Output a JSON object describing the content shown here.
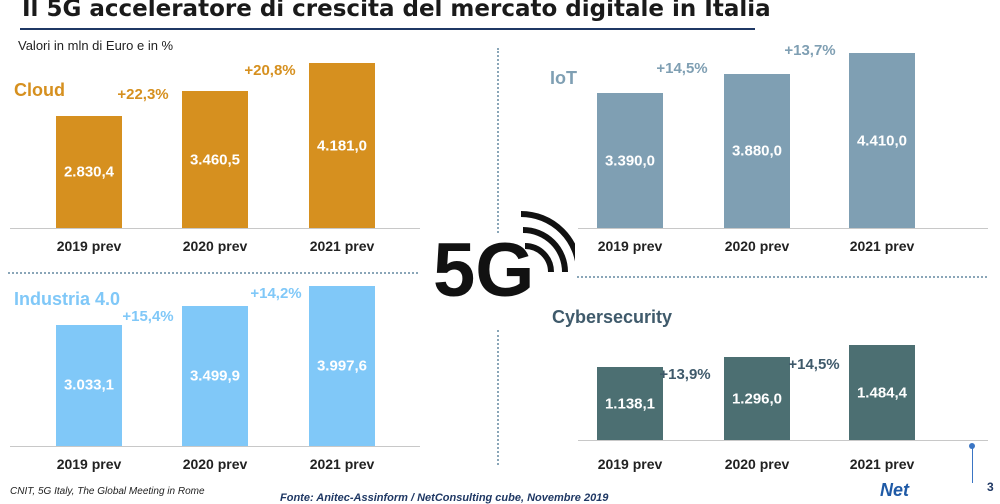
{
  "title": "Il 5G acceleratore di crescita del mercato digitale in Italia",
  "subtitle": "Valori in mln di Euro e in %",
  "center_logo": "5G",
  "footer": {
    "left": "CNIT, 5G Italy, The Global Meeting in Rome",
    "source": "Fonte: Anitec-Assinform / NetConsulting cube, Novembre 2019",
    "logo": "Net",
    "page": "3"
  },
  "colors": {
    "cloud": "#d6901f",
    "iot": "#7f9fb3",
    "industria": "#80c8f8",
    "cyber": "#4c6f72",
    "growth_cloud": "#d6901f",
    "growth_iot": "#7f9fb3",
    "growth_industria": "#80c8f8",
    "growth_cyber": "#4c6f72"
  },
  "chart_data": [
    {
      "type": "bar",
      "title": "Cloud",
      "categories": [
        "2019 prev",
        "2020 prev",
        "2021 prev"
      ],
      "values": [
        2830.4,
        3460.5,
        4181.0
      ],
      "value_labels": [
        "2.830,4",
        "3.460,5",
        "4.181,0"
      ],
      "growth_labels": [
        "+22,3%",
        "+20,8%"
      ]
    },
    {
      "type": "bar",
      "title": "IoT",
      "categories": [
        "2019 prev",
        "2020 prev",
        "2021 prev"
      ],
      "values": [
        3390.0,
        3880.0,
        4410.0
      ],
      "value_labels": [
        "3.390,0",
        "3.880,0",
        "4.410,0"
      ],
      "growth_labels": [
        "+14,5%",
        "+13,7%"
      ]
    },
    {
      "type": "bar",
      "title": "Industria 4.0",
      "categories": [
        "2019 prev",
        "2020 prev",
        "2021 prev"
      ],
      "values": [
        3033.1,
        3499.9,
        3997.6
      ],
      "value_labels": [
        "3.033,1",
        "3.499,9",
        "3.997,6"
      ],
      "growth_labels": [
        "+15,4%",
        "+14,2%"
      ]
    },
    {
      "type": "bar",
      "title": "Cybersecurity",
      "categories": [
        "2019 prev",
        "2020 prev",
        "2021 prev"
      ],
      "values": [
        1138.1,
        1296.0,
        1484.4
      ],
      "value_labels": [
        "1.138,1",
        "1.296,0",
        "1.484,4"
      ],
      "growth_labels": [
        "+13,9%",
        "+14,5%"
      ]
    }
  ]
}
